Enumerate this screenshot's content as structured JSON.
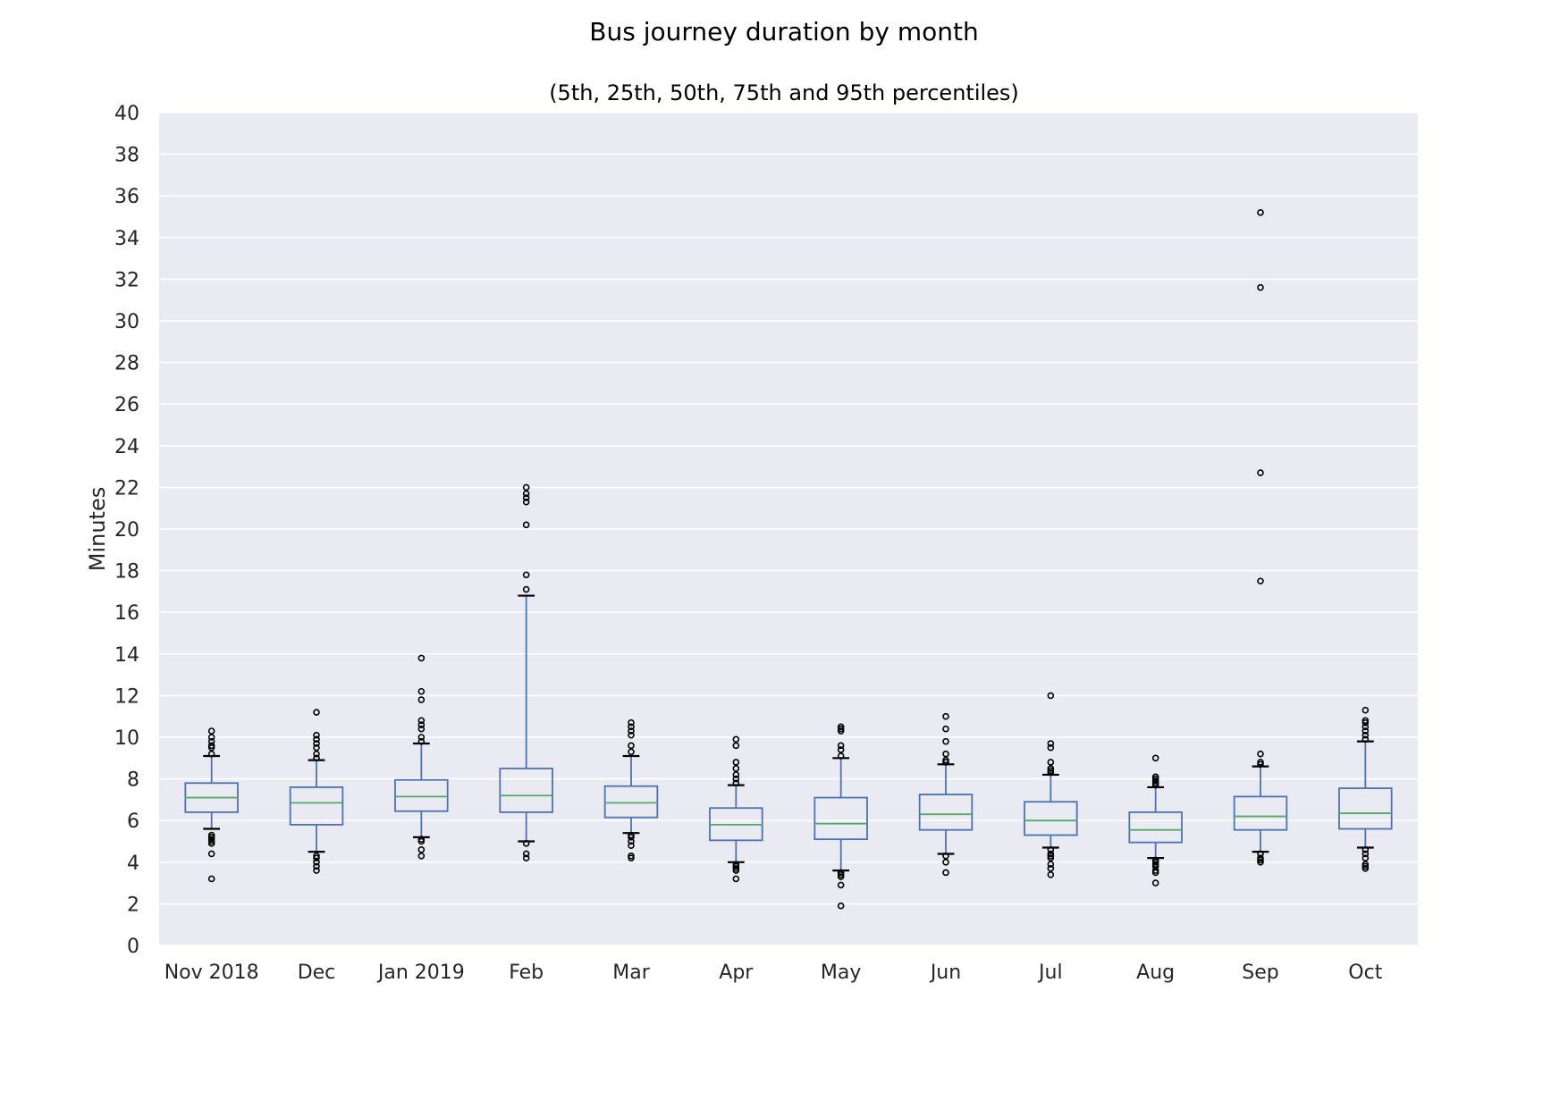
{
  "chart_data": {
    "type": "box",
    "title": "Bus journey duration by month",
    "subtitle": "(5th, 25th, 50th, 75th and 95th percentiles)",
    "ylabel": "Minutes",
    "xlabel": "",
    "ylim": [
      0,
      40
    ],
    "yticks": [
      0,
      2,
      4,
      6,
      8,
      10,
      12,
      14,
      16,
      18,
      20,
      22,
      24,
      26,
      28,
      30,
      32,
      34,
      36,
      38,
      40
    ],
    "grid": true,
    "categories": [
      "Nov 2018",
      "Dec",
      "Jan 2019",
      "Feb",
      "Mar",
      "Apr",
      "May",
      "Jun",
      "Jul",
      "Aug",
      "Sep",
      "Oct"
    ],
    "boxes": [
      {
        "p5": 5.6,
        "q1": 6.4,
        "median": 7.1,
        "q3": 7.8,
        "p95": 9.1,
        "outliers": [
          3.2,
          4.4,
          4.9,
          5.0,
          5.1,
          5.2,
          5.3,
          9.2,
          9.5,
          9.6,
          9.8,
          10.0,
          10.3
        ]
      },
      {
        "p5": 4.5,
        "q1": 5.8,
        "median": 6.85,
        "q3": 7.6,
        "p95": 8.9,
        "outliers": [
          3.6,
          3.8,
          4.0,
          4.2,
          4.3,
          9.0,
          9.2,
          9.5,
          9.7,
          9.9,
          10.1,
          11.2
        ]
      },
      {
        "p5": 5.2,
        "q1": 6.45,
        "median": 7.15,
        "q3": 7.95,
        "p95": 9.7,
        "outliers": [
          4.3,
          4.6,
          5.0,
          5.1,
          9.8,
          10.0,
          10.4,
          10.6,
          10.8,
          11.8,
          12.2,
          13.8
        ]
      },
      {
        "p5": 5.0,
        "q1": 6.4,
        "median": 7.2,
        "q3": 8.5,
        "p95": 16.8,
        "outliers": [
          4.2,
          4.4,
          4.9,
          17.1,
          17.8,
          20.2,
          21.3,
          21.5,
          21.7,
          22.0
        ]
      },
      {
        "p5": 5.4,
        "q1": 6.15,
        "median": 6.85,
        "q3": 7.65,
        "p95": 9.1,
        "outliers": [
          4.2,
          4.3,
          4.8,
          5.0,
          5.2,
          5.3,
          9.3,
          9.6,
          10.1,
          10.3,
          10.5,
          10.7
        ]
      },
      {
        "p5": 4.0,
        "q1": 5.05,
        "median": 5.8,
        "q3": 6.6,
        "p95": 7.7,
        "outliers": [
          3.2,
          3.6,
          3.7,
          3.8,
          3.9,
          7.8,
          8.0,
          8.2,
          8.5,
          8.8,
          9.6,
          9.9
        ]
      },
      {
        "p5": 3.6,
        "q1": 5.1,
        "median": 5.85,
        "q3": 7.1,
        "p95": 9.0,
        "outliers": [
          1.9,
          2.9,
          3.3,
          3.4,
          3.5,
          9.1,
          9.4,
          9.6,
          10.3,
          10.4,
          10.5
        ]
      },
      {
        "p5": 4.4,
        "q1": 5.55,
        "median": 6.3,
        "q3": 7.25,
        "p95": 8.7,
        "outliers": [
          3.5,
          4.0,
          4.3,
          8.8,
          8.9,
          9.2,
          9.8,
          10.4,
          11.0
        ]
      },
      {
        "p5": 4.7,
        "q1": 5.3,
        "median": 6.0,
        "q3": 6.9,
        "p95": 8.2,
        "outliers": [
          3.4,
          3.7,
          3.9,
          4.2,
          4.3,
          4.4,
          4.6,
          8.3,
          8.4,
          8.5,
          8.8,
          9.5,
          9.7,
          12.0
        ]
      },
      {
        "p5": 4.2,
        "q1": 4.95,
        "median": 5.55,
        "q3": 6.4,
        "p95": 7.6,
        "outliers": [
          3.0,
          3.5,
          3.6,
          3.8,
          3.9,
          4.0,
          4.1,
          7.7,
          7.8,
          7.9,
          8.0,
          8.1,
          9.0
        ]
      },
      {
        "p5": 4.5,
        "q1": 5.55,
        "median": 6.2,
        "q3": 7.15,
        "p95": 8.6,
        "outliers": [
          4.0,
          4.1,
          4.2,
          4.4,
          8.7,
          8.8,
          9.2,
          17.5,
          22.7,
          31.6,
          35.2
        ]
      },
      {
        "p5": 4.7,
        "q1": 5.6,
        "median": 6.35,
        "q3": 7.55,
        "p95": 9.8,
        "outliers": [
          3.7,
          3.8,
          3.9,
          4.2,
          4.4,
          4.6,
          9.9,
          10.1,
          10.3,
          10.5,
          10.7,
          10.8,
          11.3
        ]
      }
    ],
    "colors": {
      "plot_background": "#eaeaf2",
      "grid": "#ffffff",
      "box": "#4c72b0",
      "median": "#55a868",
      "whisker_cap": "#000000",
      "outlier": "#000000"
    }
  }
}
